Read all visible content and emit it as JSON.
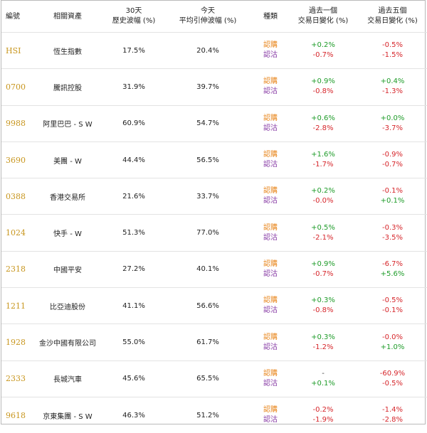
{
  "headers": {
    "code": "編號",
    "asset": "相關資產",
    "hist_vol_l1": "30天",
    "hist_vol_l2": "歷史波幅 (%)",
    "imp_vol_l1": "今天",
    "imp_vol_l2": "平均引伸波幅 (%)",
    "type": "種類",
    "chg1_l1": "過去一個",
    "chg1_l2": "交易日變化 (%)",
    "chg5_l1": "過去五個",
    "chg5_l2": "交易日變化 (%)"
  },
  "type_labels": {
    "call": "認購",
    "put": "認沽"
  },
  "colors": {
    "code": "#c8961e",
    "call": "#e8871e",
    "put": "#8a3fa7",
    "positive": "#1f9c2a",
    "negative": "#d6262b"
  },
  "rows": [
    {
      "code": "HSI",
      "name": "恆生指數",
      "hist": "17.5%",
      "imp": "20.4%",
      "d1_call": "+0.2%",
      "d1_put": "-0.7%",
      "d5_call": "-0.5%",
      "d5_put": "-1.5%"
    },
    {
      "code": "0700",
      "name": "騰訊控股",
      "hist": "31.9%",
      "imp": "39.7%",
      "d1_call": "+0.9%",
      "d1_put": "-0.8%",
      "d5_call": "+0.4%",
      "d5_put": "-1.3%"
    },
    {
      "code": "9988",
      "name": "阿里巴巴 - S W",
      "hist": "60.9%",
      "imp": "54.7%",
      "d1_call": "+0.6%",
      "d1_put": "-2.8%",
      "d5_call": "+0.0%",
      "d5_put": "-3.7%"
    },
    {
      "code": "3690",
      "name": "美團 - W",
      "hist": "44.4%",
      "imp": "56.5%",
      "d1_call": "+1.6%",
      "d1_put": "-1.7%",
      "d5_call": "-0.9%",
      "d5_put": "-0.7%"
    },
    {
      "code": "0388",
      "name": "香港交易所",
      "hist": "21.6%",
      "imp": "33.7%",
      "d1_call": "+0.2%",
      "d1_put": "-0.0%",
      "d5_call": "-0.1%",
      "d5_put": "+0.1%"
    },
    {
      "code": "1024",
      "name": "快手 - W",
      "hist": "51.3%",
      "imp": "77.0%",
      "d1_call": "+0.5%",
      "d1_put": "-2.1%",
      "d5_call": "-0.3%",
      "d5_put": "-3.5%"
    },
    {
      "code": "2318",
      "name": "中國平安",
      "hist": "27.2%",
      "imp": "40.1%",
      "d1_call": "+0.9%",
      "d1_put": "-0.7%",
      "d5_call": "-6.7%",
      "d5_put": "+5.6%"
    },
    {
      "code": "1211",
      "name": "比亞迪股份",
      "hist": "41.1%",
      "imp": "56.6%",
      "d1_call": "+0.3%",
      "d1_put": "-0.8%",
      "d5_call": "-0.5%",
      "d5_put": "-0.1%"
    },
    {
      "code": "1928",
      "name": "金沙中國有限公司",
      "hist": "55.0%",
      "imp": "61.7%",
      "d1_call": "+0.3%",
      "d1_put": "-1.2%",
      "d5_call": "-0.0%",
      "d5_put": "+1.0%"
    },
    {
      "code": "2333",
      "name": "長城汽車",
      "hist": "45.6%",
      "imp": "65.5%",
      "d1_call": "-",
      "d1_put": "+0.1%",
      "d5_call": "-60.9%",
      "d5_put": "-0.5%"
    },
    {
      "code": "9618",
      "name": "京東集團 - S W",
      "hist": "46.3%",
      "imp": "51.2%",
      "d1_call": "-0.2%",
      "d1_put": "-1.9%",
      "d5_call": "-1.4%",
      "d5_put": "-2.8%"
    }
  ]
}
